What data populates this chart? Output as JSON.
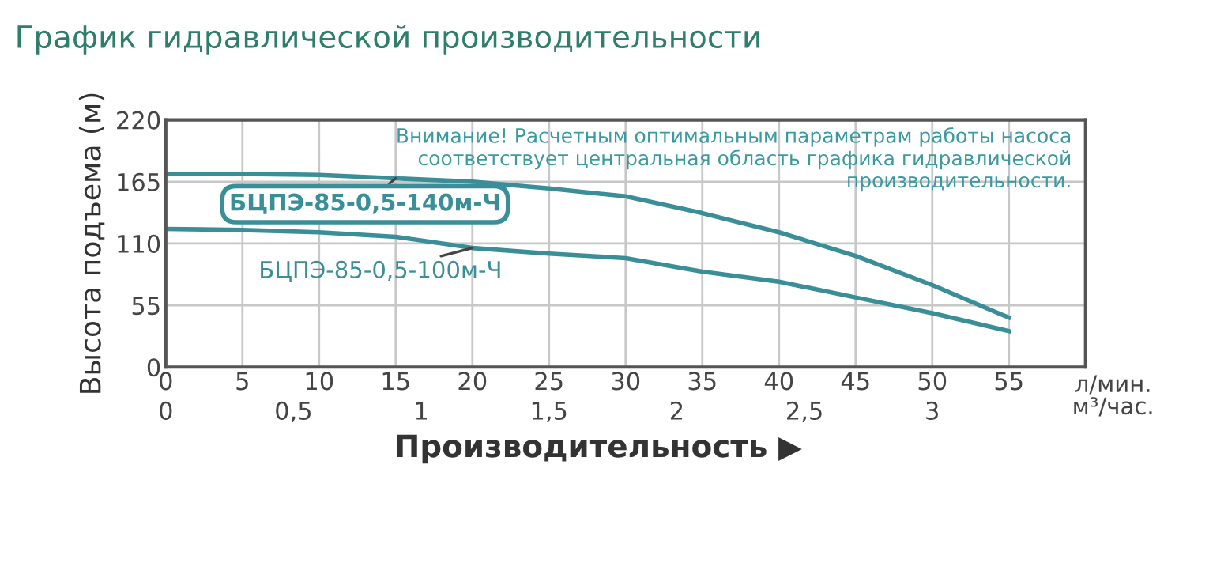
{
  "chart_data": {
    "type": "line",
    "title": "График гидравлической производительности",
    "ylabel": "Высота подъема (м)",
    "xlabel": "л/мин.",
    "x2label": "м³/час.",
    "annotations": [
      "Производительность ▶",
      "Внимание! Расчетным оптимальным параметрам работы насоса соответствует центральная область графика гидравлической производительности."
    ],
    "xlim": [
      0,
      60
    ],
    "xticks": [
      0,
      5,
      10,
      15,
      20,
      25,
      30,
      35,
      40,
      45,
      50,
      55
    ],
    "x2lim": [
      0,
      3.6
    ],
    "x2ticks": [
      0,
      {
        "value": 0.5,
        "label": "0,5"
      },
      1,
      {
        "value": 1.5,
        "label": "1,5"
      },
      2,
      {
        "value": 2.5,
        "label": "2,5"
      },
      3
    ],
    "ylim": [
      0,
      220
    ],
    "yticks": [
      0,
      55,
      110,
      165,
      220
    ],
    "grid": true,
    "legend": false,
    "marker": "none",
    "line_style": "solid",
    "series": [
      {
        "name": "БЦПЭ-85-0,5-140м-Ч",
        "color": "#3a8e98",
        "x": [
          0,
          5,
          10,
          15,
          20,
          25,
          30,
          35,
          40,
          45,
          50,
          55
        ],
        "values": [
          172,
          172,
          171,
          168,
          165,
          159,
          152,
          137,
          120,
          99,
          73,
          44
        ]
      },
      {
        "name": "БЦПЭ-85-0,5-100м-Ч",
        "color": "#3a8e98",
        "x": [
          0,
          5,
          10,
          15,
          20,
          25,
          30,
          35,
          40,
          45,
          50,
          55
        ],
        "values": [
          123,
          122,
          120,
          116,
          106,
          101,
          97,
          85,
          76,
          62,
          48,
          32
        ]
      }
    ]
  }
}
